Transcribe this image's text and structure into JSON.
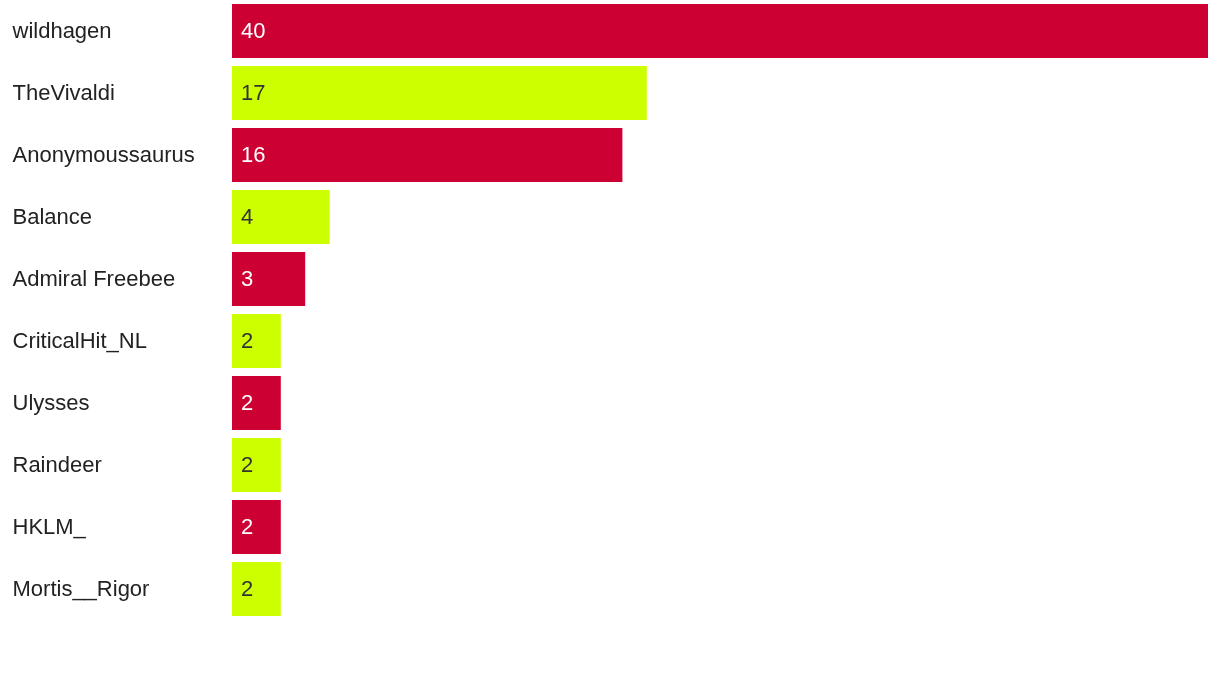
{
  "chart_data": {
    "type": "bar",
    "orientation": "horizontal",
    "categories": [
      "wildhagen",
      "TheVivaldi",
      "Anonymoussaurus",
      "Balance",
      "Admiral Freebee",
      "CriticalHit_NL",
      "Ulysses",
      "Raindeer",
      "HKLM_",
      "Mortis__Rigor"
    ],
    "values": [
      40,
      17,
      16,
      4,
      3,
      2,
      2,
      2,
      2,
      2
    ],
    "colors": [
      "#cc0033",
      "#ccff00",
      "#cc0033",
      "#ccff00",
      "#cc0033",
      "#ccff00",
      "#cc0033",
      "#ccff00",
      "#cc0033",
      "#ccff00"
    ],
    "data_labels": true
  }
}
